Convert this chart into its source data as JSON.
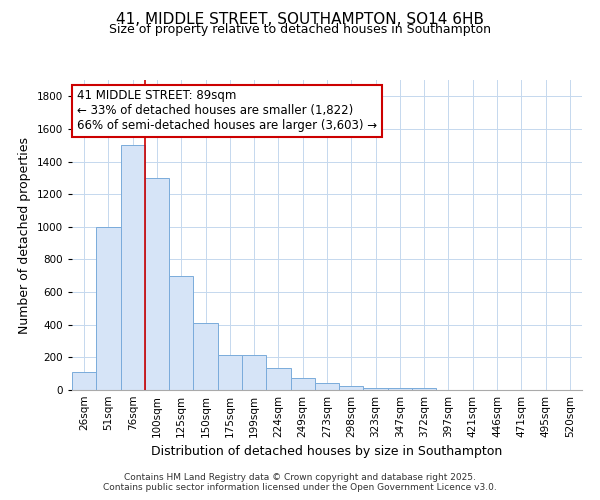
{
  "title": "41, MIDDLE STREET, SOUTHAMPTON, SO14 6HB",
  "subtitle": "Size of property relative to detached houses in Southampton",
  "xlabel": "Distribution of detached houses by size in Southampton",
  "ylabel": "Number of detached properties",
  "categories": [
    "26sqm",
    "51sqm",
    "76sqm",
    "100sqm",
    "125sqm",
    "150sqm",
    "175sqm",
    "199sqm",
    "224sqm",
    "249sqm",
    "273sqm",
    "298sqm",
    "323sqm",
    "347sqm",
    "372sqm",
    "397sqm",
    "421sqm",
    "446sqm",
    "471sqm",
    "495sqm",
    "520sqm"
  ],
  "values": [
    110,
    1000,
    1500,
    1300,
    700,
    410,
    215,
    215,
    135,
    75,
    40,
    25,
    15,
    10,
    15,
    0,
    0,
    0,
    0,
    0,
    0
  ],
  "bar_color": "#d6e4f7",
  "bar_edge_color": "#7aabdb",
  "reference_line_color": "#cc0000",
  "annotation_text": "41 MIDDLE STREET: 89sqm\n← 33% of detached houses are smaller (1,822)\n66% of semi-detached houses are larger (3,603) →",
  "annotation_box_facecolor": "#ffffff",
  "annotation_box_edgecolor": "#cc0000",
  "ylim": [
    0,
    1900
  ],
  "yticks": [
    0,
    200,
    400,
    600,
    800,
    1000,
    1200,
    1400,
    1600,
    1800
  ],
  "background_color": "#ffffff",
  "grid_color": "#c5d8ee",
  "footer_line1": "Contains HM Land Registry data © Crown copyright and database right 2025.",
  "footer_line2": "Contains public sector information licensed under the Open Government Licence v3.0.",
  "title_fontsize": 11,
  "subtitle_fontsize": 9,
  "axis_label_fontsize": 9,
  "tick_fontsize": 7.5,
  "annotation_fontsize": 8.5,
  "footer_fontsize": 6.5
}
